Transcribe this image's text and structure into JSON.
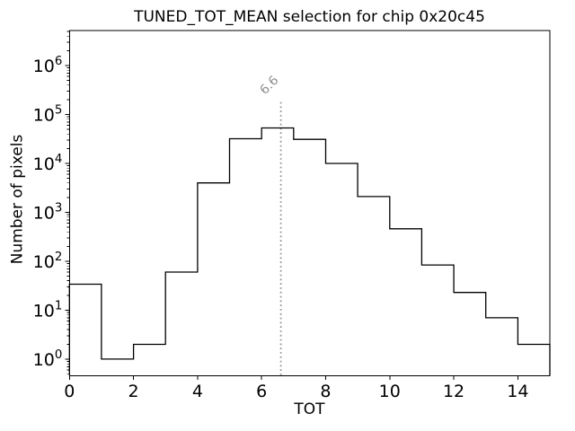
{
  "chart_data": {
    "type": "bar",
    "chart_kind": "step_histogram",
    "title": "TUNED_TOT_MEAN selection for chip 0x20c45",
    "xlabel": "TOT",
    "ylabel": "Number of pixels",
    "yscale": "log",
    "xlim": [
      0,
      15
    ],
    "ylim": [
      0.46,
      5200000
    ],
    "xticks": [
      0,
      2,
      4,
      6,
      8,
      10,
      12,
      14
    ],
    "ytick_exponents": [
      0,
      1,
      2,
      3,
      4,
      5,
      6
    ],
    "bin_edges": [
      0,
      1,
      2,
      3,
      4,
      5,
      6,
      7,
      8,
      9,
      10,
      11,
      12,
      13,
      14,
      15
    ],
    "counts": [
      34,
      1,
      2,
      60,
      4000,
      32000,
      53000,
      31000,
      10000,
      2100,
      460,
      84,
      23,
      7,
      2
    ],
    "line_color": "#000000",
    "background_color": "#ffffff",
    "grid": false,
    "legend_position": "none",
    "vline": {
      "x": 6.6,
      "label": "6.6",
      "color": "#8e8e8e",
      "linestyle": "dotted",
      "ymax_fraction": 0.8
    }
  }
}
